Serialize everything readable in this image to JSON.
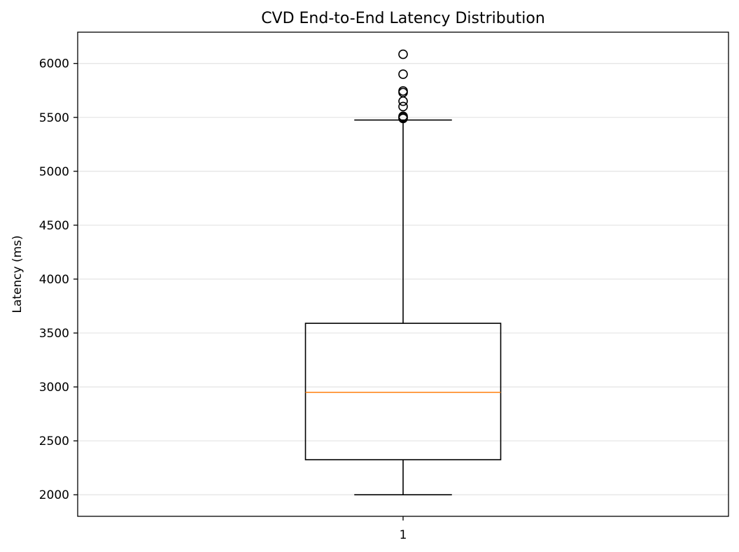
{
  "chart_data": {
    "type": "box",
    "title": "CVD End-to-End Latency Distribution",
    "xlabel": "",
    "ylabel": "Latency (ms)",
    "categories": [
      "1"
    ],
    "ylim": [
      1800,
      6290
    ],
    "yticks": [
      "2000",
      "2500",
      "3000",
      "3500",
      "4000",
      "4500",
      "5000",
      "5500",
      "6000"
    ],
    "grid": "y",
    "colors": {
      "box": "#000000",
      "median": "#ff7f0e",
      "grid": "#e6e6e6"
    },
    "boxes": [
      {
        "category": "1",
        "whisker_low": 2000,
        "q1": 2325,
        "median": 2950,
        "q3": 3590,
        "whisker_high": 5475,
        "outliers": [
          5490,
          5500,
          5510,
          5600,
          5650,
          5730,
          5745,
          5900,
          6085
        ]
      }
    ]
  }
}
